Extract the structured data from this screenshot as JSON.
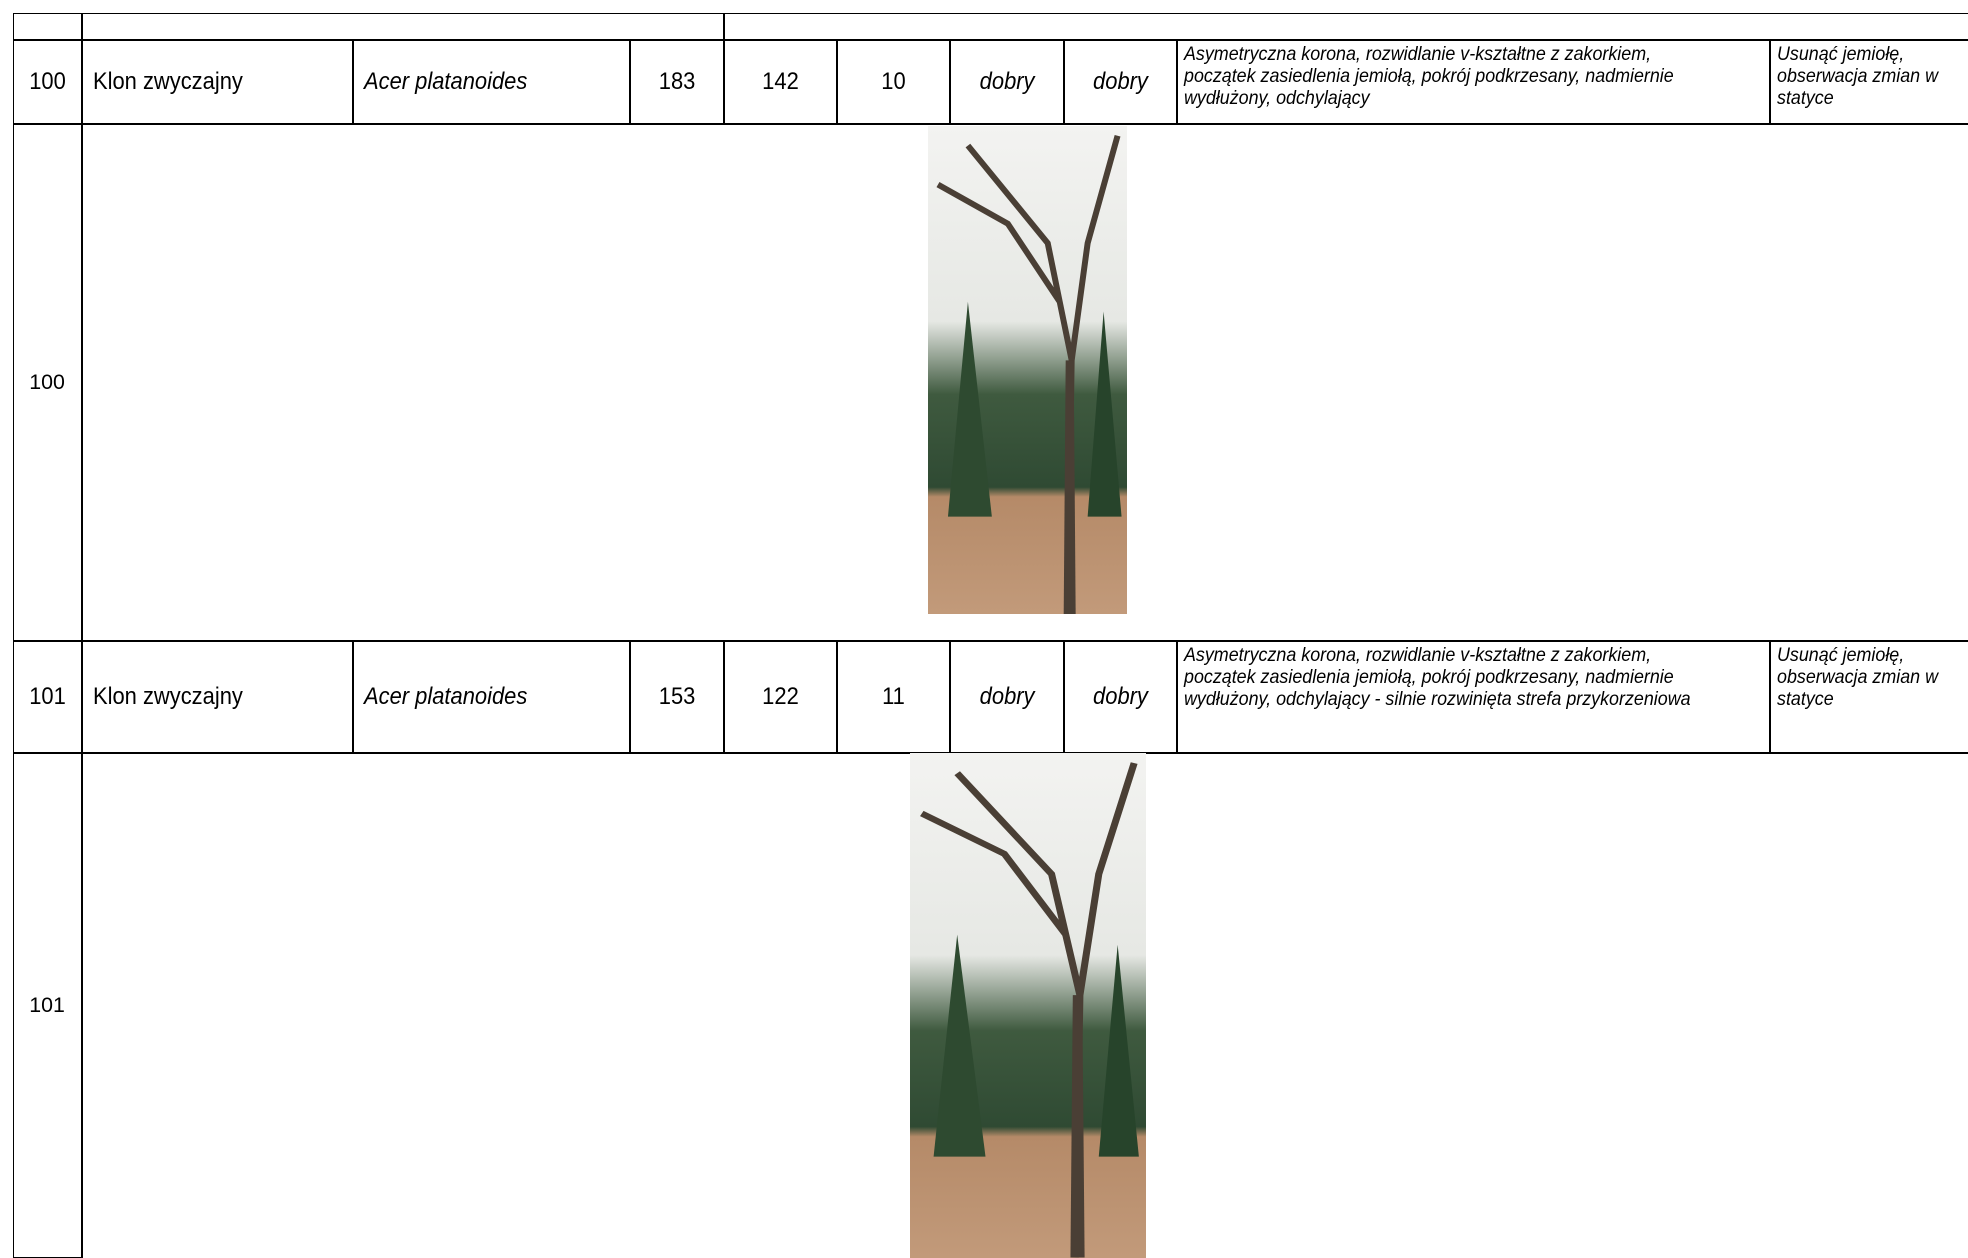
{
  "table": {
    "rows": [
      {
        "cells": [
          "100",
          "Klon zwyczajny",
          "Acer platanoides",
          "183",
          "142",
          "10",
          "dobry",
          "dobry",
          "Asymetryczna korona, rozwidlanie v-kształtne z zakorkiem, początek zasiedlenia jemiołą, pokrój podkrzesany, nadmiernie wydłużony, odchylający",
          "Usunąć jemiołę, obserwacja zmian w statyce"
        ]
      },
      {
        "photo_label": "100"
      },
      {
        "cells": [
          "101",
          "Klon zwyczajny",
          "Acer platanoides",
          "153",
          "122",
          "11",
          "dobry",
          "dobry",
          "Asymetryczna korona, rozwidlanie v-kształtne z zakorkiem, początek zasiedlenia jemiołą, pokrój podkrzesany, nadmiernie wydłużony, odchylający - silnie rozwinięta strefa przykorzeniowa",
          "Usunąć jemiołę, obserwacja zmian w statyce"
        ]
      },
      {
        "photo_label": "101"
      }
    ]
  }
}
